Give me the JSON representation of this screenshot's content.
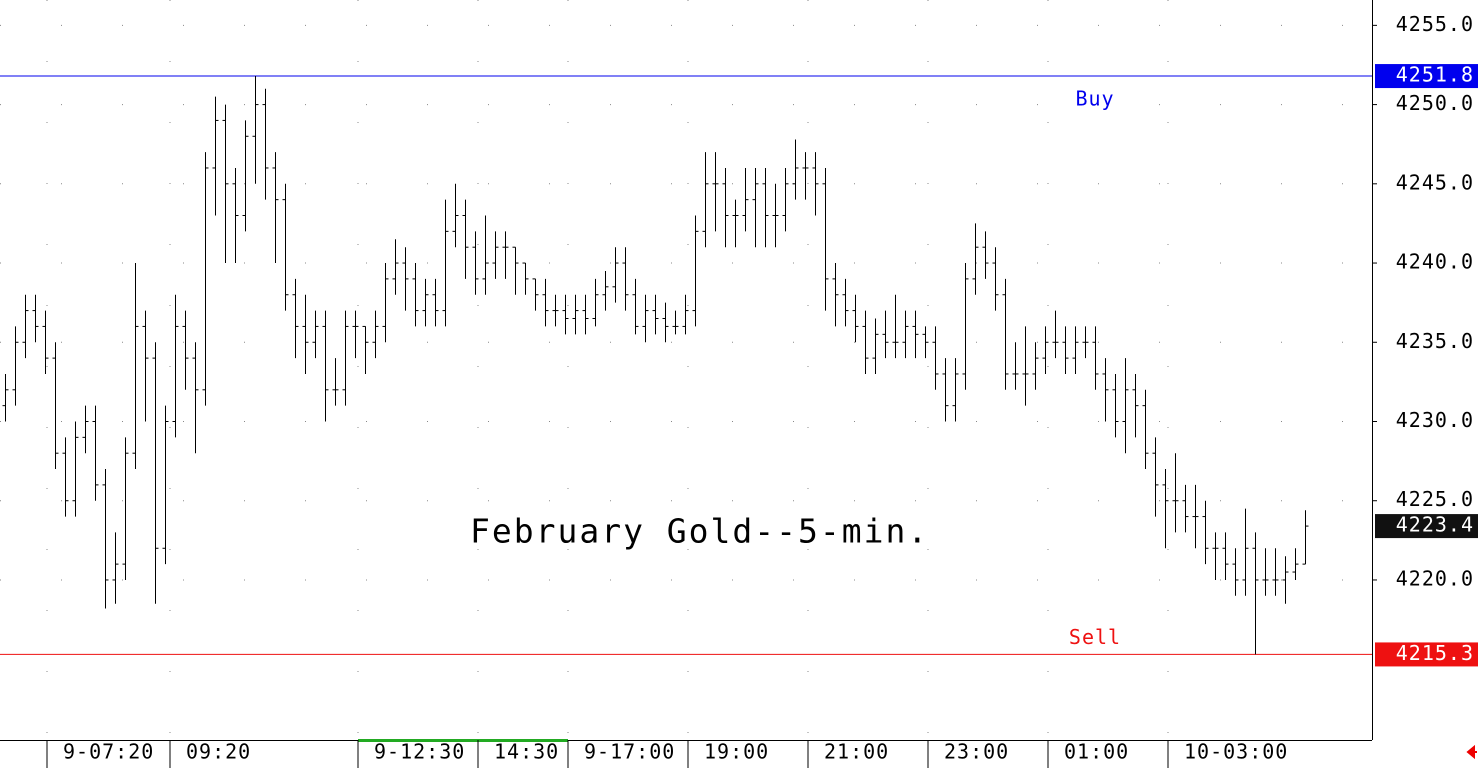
{
  "chart_data": {
    "type": "ohlc",
    "annotation": "February Gold--5-min.",
    "series": [
      {
        "color": "#000000",
        "open": [
          4231,
          4232,
          4235,
          4237,
          4236,
          4234,
          4228,
          4225,
          4229,
          4230,
          4226,
          4220,
          4221,
          4228,
          4236,
          4234,
          4222,
          4230,
          4236,
          4234,
          4232,
          4246,
          4249,
          4245,
          4243,
          4248,
          4250,
          4246,
          4244,
          4238,
          4236,
          4235,
          4236,
          4232,
          4232,
          4236,
          4236,
          4235,
          4236,
          4239,
          4240,
          4239,
          4237,
          4238,
          4237,
          4242,
          4243,
          4241,
          4239,
          4240,
          4241,
          4241,
          4240,
          4239,
          4238,
          4237,
          4237,
          4236.5,
          4237,
          4236.5,
          4238,
          4238.5,
          4240,
          4238,
          4236,
          4237,
          4236.5,
          4236,
          4236,
          4237,
          4242,
          4245,
          4245,
          4243,
          4243,
          4244,
          4245,
          4243,
          4243,
          4245,
          4246,
          4246,
          4245,
          4239,
          4238,
          4237,
          4236,
          4234,
          4235.5,
          4235,
          4235,
          4236,
          4235.5,
          4235,
          4233,
          4231,
          4233,
          4239,
          4241,
          4240,
          4238,
          4233,
          4233,
          4233,
          4234,
          4235,
          4235,
          4234,
          4235,
          4235,
          4233,
          4232,
          4230,
          4232,
          4231,
          4228,
          4226,
          4225,
          4225,
          4224,
          4224,
          4222,
          4222,
          4221,
          4220,
          4222,
          4220,
          4220,
          4220,
          4220.5,
          4221
        ],
        "high": [
          4233,
          4236,
          4238,
          4238,
          4237,
          4235,
          4229,
          4230,
          4231,
          4231,
          4227,
          4223,
          4229,
          4240,
          4237,
          4235,
          4231,
          4238,
          4237,
          4235,
          4247,
          4250.5,
          4250,
          4246,
          4249,
          4251.8,
          4251,
          4247,
          4245,
          4239,
          4238,
          4237,
          4237,
          4234,
          4237,
          4237,
          4236,
          4237,
          4240,
          4241.5,
          4241,
          4240,
          4239,
          4239,
          4244,
          4245,
          4244,
          4242,
          4243,
          4242,
          4242,
          4241,
          4240,
          4239,
          4239,
          4238,
          4238,
          4238,
          4238,
          4239,
          4239.5,
          4241,
          4241,
          4239,
          4238,
          4238,
          4237.5,
          4237,
          4238,
          4243,
          4247,
          4247,
          4246,
          4244,
          4246,
          4246,
          4246,
          4245,
          4246,
          4247.8,
          4247,
          4247,
          4246,
          4240,
          4239,
          4238,
          4237,
          4236.5,
          4237,
          4238,
          4237,
          4237,
          4236,
          4236,
          4234,
          4234,
          4240,
          4242.5,
          4242,
          4241,
          4239,
          4235,
          4236,
          4235,
          4236,
          4237,
          4236,
          4236,
          4236,
          4236,
          4234,
          4233,
          4234,
          4233,
          4232,
          4229,
          4227,
          4228,
          4226,
          4226,
          4225,
          4223,
          4223,
          4222,
          4224.5,
          4223,
          4222,
          4222,
          4221.5,
          4222,
          4224.4
        ],
        "low": [
          4230,
          4231,
          4234,
          4235,
          4233,
          4227,
          4224,
          4224,
          4228,
          4225,
          4218.2,
          4218.5,
          4220,
          4227,
          4230,
          4218.5,
          4221,
          4229,
          4232,
          4228,
          4231,
          4243,
          4240,
          4240,
          4242,
          4245,
          4244,
          4240,
          4237,
          4234,
          4233,
          4234,
          4230,
          4231,
          4231,
          4234,
          4233,
          4234,
          4235,
          4238,
          4237,
          4236,
          4236,
          4236,
          4236,
          4241,
          4239,
          4238,
          4238,
          4239,
          4239,
          4238,
          4238,
          4237,
          4236,
          4236,
          4235.5,
          4235.5,
          4235.5,
          4236,
          4237,
          4237.5,
          4237,
          4235.5,
          4235,
          4235.5,
          4235,
          4235.5,
          4235.5,
          4236,
          4241,
          4242,
          4241,
          4241,
          4242,
          4241,
          4241,
          4241,
          4242,
          4244,
          4244,
          4243,
          4237,
          4236,
          4236,
          4235,
          4233,
          4233,
          4234,
          4234,
          4234,
          4234,
          4234,
          4232,
          4230,
          4230,
          4232,
          4238,
          4239,
          4237,
          4232,
          4232,
          4231,
          4232,
          4233,
          4234,
          4233,
          4233,
          4234,
          4232,
          4230,
          4229,
          4228,
          4229,
          4227,
          4224,
          4222,
          4223,
          4223,
          4222,
          4221,
          4220,
          4220,
          4219,
          4219,
          4215.3,
          4219,
          4219,
          4218.5,
          4220,
          4221
        ],
        "close": [
          4232,
          4235,
          4237,
          4236,
          4234,
          4228,
          4225,
          4229,
          4230,
          4226,
          4220,
          4221,
          4228,
          4236,
          4234,
          4222,
          4230,
          4236,
          4234,
          4232,
          4246,
          4249,
          4245,
          4243,
          4248,
          4250,
          4246,
          4244,
          4238,
          4236,
          4235,
          4236,
          4232,
          4232,
          4236,
          4236,
          4235,
          4236,
          4239,
          4240,
          4239,
          4237,
          4238,
          4237,
          4242,
          4243,
          4241,
          4239,
          4240,
          4241,
          4241,
          4240,
          4239,
          4238,
          4237,
          4237,
          4236.5,
          4237,
          4236.5,
          4238,
          4238.5,
          4240,
          4238,
          4236,
          4237,
          4236.5,
          4236,
          4236,
          4237,
          4242,
          4245,
          4245,
          4243,
          4243,
          4244,
          4245,
          4243,
          4243,
          4245,
          4246,
          4246,
          4245,
          4239,
          4238,
          4237,
          4236,
          4234,
          4235.5,
          4235,
          4235,
          4236,
          4235.5,
          4235,
          4233,
          4231,
          4233,
          4239,
          4241,
          4240,
          4238,
          4233,
          4233,
          4233,
          4234,
          4235,
          4235,
          4234,
          4235,
          4235,
          4233,
          4232,
          4230,
          4232,
          4231,
          4228,
          4226,
          4225,
          4225,
          4224,
          4224,
          4222,
          4222,
          4221,
          4220,
          4222,
          4220,
          4220,
          4220,
          4220.5,
          4221,
          4223.4
        ]
      }
    ],
    "ylim": [
      4209.9,
      4256.6
    ],
    "yticks": [
      {
        "value": 4220,
        "label": "4220.0"
      },
      {
        "value": 4225,
        "label": "4225.0"
      },
      {
        "value": 4230,
        "label": "4230.0"
      },
      {
        "value": 4235,
        "label": "4235.0"
      },
      {
        "value": 4240,
        "label": "4240.0"
      },
      {
        "value": 4245,
        "label": "4245.0"
      },
      {
        "value": 4250,
        "label": "4250.0"
      },
      {
        "value": 4255,
        "label": "4255.0"
      }
    ],
    "xlim": [
      -0.5,
      136.7
    ],
    "xticks": [
      {
        "value": 4.2,
        "label": "9-07:20"
      },
      {
        "value": 16.5,
        "label": "09:20"
      },
      {
        "value": 35.3,
        "label": "9-12:30"
      },
      {
        "value": 47.3,
        "label": "14:30"
      },
      {
        "value": 56.3,
        "label": "9-17:00"
      },
      {
        "value": 68.3,
        "label": "19:00"
      },
      {
        "value": 80.3,
        "label": "21:00"
      },
      {
        "value": 92.3,
        "label": "23:00"
      },
      {
        "value": 104.3,
        "label": "01:00"
      },
      {
        "value": 116.3,
        "label": "10-03:00"
      }
    ],
    "levels": [
      {
        "name": "Buy",
        "value": 4251.8,
        "color": "#0000ee"
      },
      {
        "name": "Sell",
        "value": 4215.3,
        "color": "#ee1111"
      }
    ],
    "last": {
      "value": 4223.4,
      "color": "#111111"
    },
    "grid": true
  }
}
